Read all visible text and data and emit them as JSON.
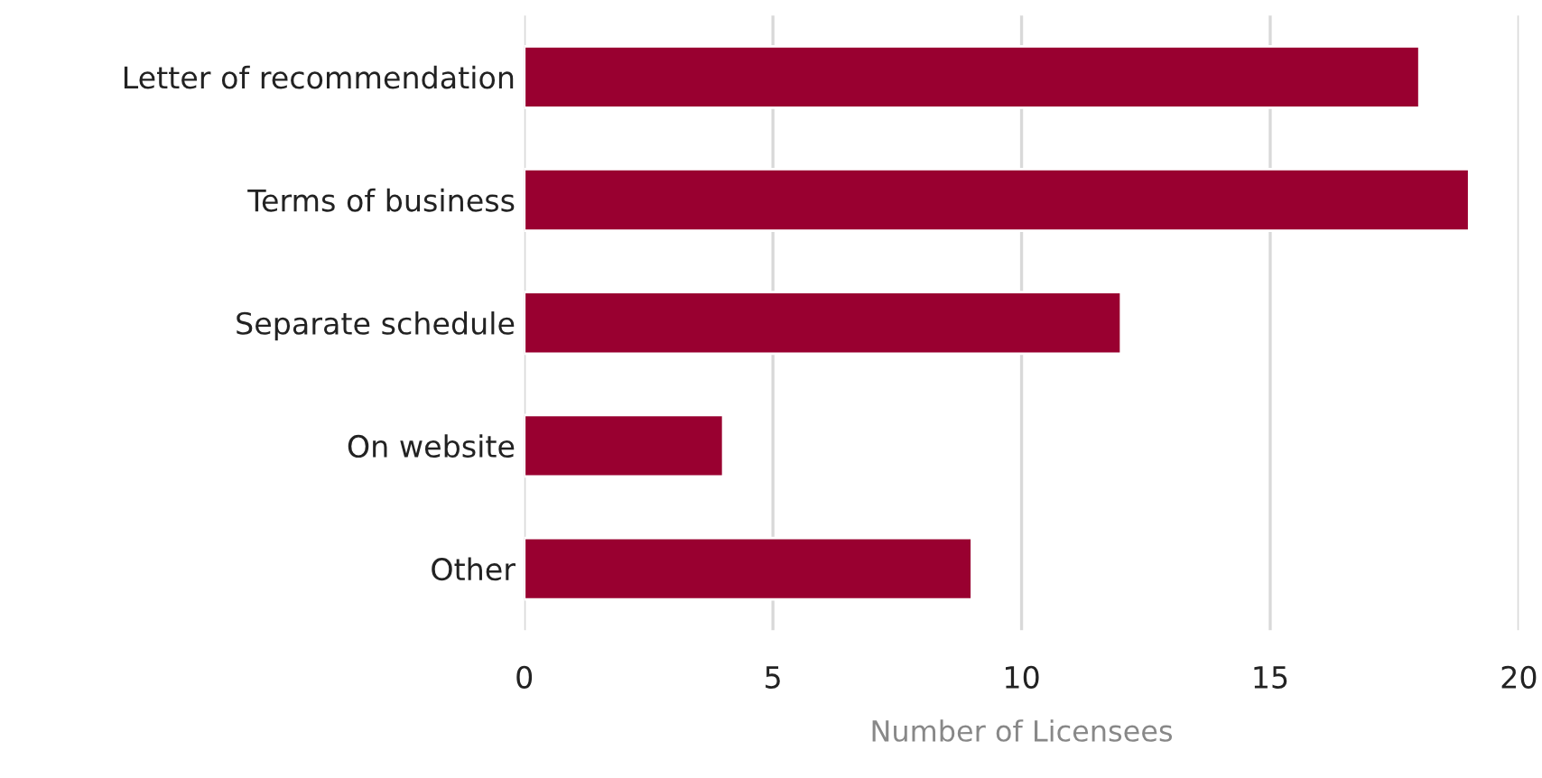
{
  "chart_data": {
    "type": "bar",
    "orientation": "horizontal",
    "xlabel": "Number of Licensees",
    "categories": [
      "Letter of recommendation",
      "Terms of business",
      "Separate schedule",
      "On website",
      "Other"
    ],
    "values": [
      18,
      19,
      12,
      4,
      9
    ],
    "color": "#990030",
    "xlim": [
      0,
      20
    ],
    "xticks": [
      0,
      5,
      10,
      15,
      20
    ],
    "grid": "x"
  }
}
